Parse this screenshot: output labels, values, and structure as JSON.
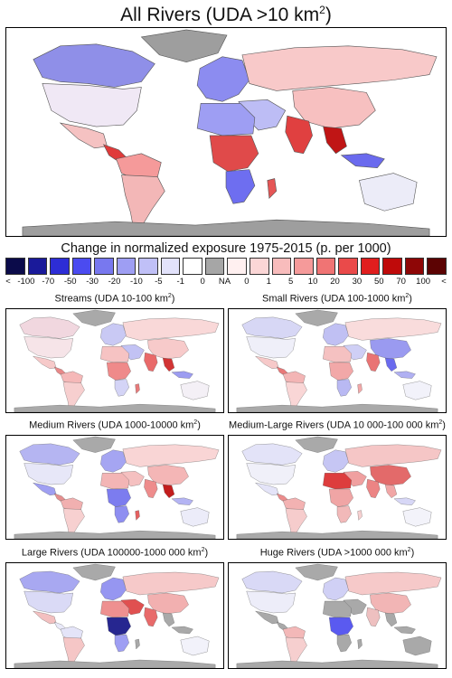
{
  "main_title": "All Rivers (UDA >10 km",
  "main_title_sup": "2",
  "main_title_suffix": ")",
  "legend": {
    "title": "Change in normalized exposure 1975-2015 (p. per 1000)",
    "labels": [
      "<",
      "-100",
      "-70",
      "-50",
      "-30",
      "-20",
      "-10",
      "-5",
      "-1",
      "0",
      "NA",
      "0",
      "1",
      "5",
      "10",
      "20",
      "30",
      "50",
      "70",
      "100",
      "<"
    ],
    "colors": [
      "#0b0b4a",
      "#1a1a9a",
      "#2d2dd6",
      "#4b4bf0",
      "#7878ef",
      "#9e9ef3",
      "#c0c0f7",
      "#e2e2fb",
      "#ffffff",
      "#a6a6a6",
      "#fff0f0",
      "#fbd6d6",
      "#f8bcbc",
      "#f59a9a",
      "#f07474",
      "#ea4a4a",
      "#e01e1e",
      "#bf0a0a",
      "#8e0606",
      "#5c0303"
    ]
  },
  "panels": [
    {
      "title": "Streams (UDA 10-100 km",
      "sup": "2",
      "suffix": ")"
    },
    {
      "title": "Small Rivers (UDA 100-1000 km",
      "sup": "2",
      "suffix": ")"
    },
    {
      "title": "Medium Rivers (UDA 1000-10000 km",
      "sup": "2",
      "suffix": ")"
    },
    {
      "title": "Medium-Large Rivers (UDA 10 000-100 000 km",
      "sup": "2",
      "suffix": ")"
    },
    {
      "title": "Large Rivers (UDA 100000-1000 000 km",
      "sup": "2",
      "suffix": ")"
    },
    {
      "title": "Huge Rivers (UDA >1000 000 km",
      "sup": "2",
      "suffix": ")"
    }
  ],
  "map_colors": {
    "main": {
      "na": "#9e9e9e",
      "north_america": "#8f8fe8",
      "canada": "#8f8fe8",
      "usa": "#f0e8f5",
      "mexico": "#f5c2c2",
      "central_america": "#e03a3a",
      "south_america": "#f3b7b7",
      "south_america_north": "#f59a9a",
      "europe": "#8c8cf0",
      "africa_north": "#9e9ef3",
      "africa_central": "#e04a4a",
      "africa_south": "#6e6ef0",
      "russia": "#f8c9c9",
      "middle_east": "#bdbdf5",
      "india": "#e04040",
      "china": "#f7c0c0",
      "se_asia": "#c01515",
      "indonesia": "#6a6aee",
      "australia": "#ececf8",
      "madagascar": "#e55555"
    },
    "streams": {
      "na": "#a9a9a9",
      "north_america": "#f2d4dc",
      "canada": "#f1d7df",
      "usa": "#f6e4e8",
      "mexico": "#f6c9c9",
      "central_america": "#e88888",
      "south_america": "#f7cfcf",
      "south_america_north": "#f5b8b8",
      "europe": "#c9c9f4",
      "africa_north": "#f6c3c3",
      "africa_central": "#ef8a8a",
      "africa_south": "#d4d4f6",
      "russia": "#f9d8d8",
      "middle_east": "#c2c2f4",
      "india": "#e96a6a",
      "china": "#f7caca",
      "se_asia": "#d23434",
      "indonesia": "#9c9cf1",
      "australia": "#f4f0f6",
      "madagascar": "#e87a7a"
    },
    "small": {
      "na": "#a9a9a9",
      "north_america": "#dcdcf4",
      "canada": "#d7d7f5",
      "usa": "#efeff9",
      "mexico": "#f6c9c9",
      "central_america": "#e87878",
      "south_america": "#f9d6d6",
      "south_america_north": "#f3b5b5",
      "europe": "#c0c0f3",
      "africa_north": "#f5c1c1",
      "africa_central": "#f2a8a8",
      "africa_south": "#b9b9f3",
      "russia": "#f9dcdc",
      "middle_east": "#cfcff5",
      "india": "#e97474",
      "china": "#9a9af0",
      "se_asia": "#6a6aee",
      "indonesia": "#b0b0f2",
      "australia": "#f2f2fa",
      "madagascar": "#f3a8a8"
    },
    "medium": {
      "na": "#a9a9a9",
      "north_america": "#b9b9f3",
      "canada": "#b5b5f2",
      "usa": "#e7e7f8",
      "mexico": "#9f9ff2",
      "central_america": "#e58f8f",
      "south_america": "#f7d0d0",
      "south_america_north": "#f1b0b0",
      "europe": "#a5a5f2",
      "africa_north": "#f3b5b5",
      "africa_central": "#7c7cef",
      "africa_south": "#8e8ef1",
      "russia": "#f9d5d5",
      "middle_east": "#f5c0c0",
      "india": "#ee8c8c",
      "china": "#f4b6b6",
      "se_asia": "#c31d1d",
      "indonesia": "#b4b4f3",
      "australia": "#ececf9",
      "madagascar": "#e66060"
    },
    "medium_large": {
      "na": "#a9a9a9",
      "north_america": "#ececf9",
      "canada": "#e3e3f8",
      "usa": "#f0f0f9",
      "mexico": "#e4e4f8",
      "central_america": "#ec8c8c",
      "south_america": "#f6cccc",
      "south_america_north": "#f3b2b2",
      "europe": "#c6c6f4",
      "africa_north": "#dd3d3d",
      "africa_central": "#f0a5a5",
      "africa_south": "#f2b9b9",
      "russia": "#f5c6c6",
      "middle_east": "#f0a0a0",
      "india": "#ec8484",
      "china": "#e36a6a",
      "se_asia": "#f1a6a6",
      "indonesia": "#d7d7f6",
      "australia": "#f3f3fa",
      "madagascar": "#f7d0d0"
    },
    "large": {
      "na": "#a9a9a9",
      "north_america": "#b4b4f2",
      "canada": "#a8a8f1",
      "usa": "#dadaf6",
      "mexico": "#f3c0c0",
      "central_america": "#e9e9f9",
      "south_america": "#f5c6c6",
      "south_america_north": "#e4e4f8",
      "europe": "#9696f1",
      "africa_north": "#ee9090",
      "africa_central": "#262690",
      "africa_south": "#9e9ef3",
      "russia": "#f6c9c9",
      "middle_east": "#e05050",
      "india": "#e86a6a",
      "china": "#f2b0b0",
      "se_asia": "#a9a9a9",
      "indonesia": "#a9a9a9",
      "australia": "#f2f2fa",
      "madagascar": "#a9a9a9"
    },
    "huge": {
      "na": "#a9a9a9",
      "north_america": "#e4e4f8",
      "canada": "#d9d9f6",
      "usa": "#ededf9",
      "mexico": "#a9a9a9",
      "central_america": "#a9a9a9",
      "south_america": "#f6cfcf",
      "south_america_north": "#f3b8b8",
      "europe": "#d0d0f5",
      "africa_north": "#a9a9a9",
      "africa_central": "#5a5af0",
      "africa_south": "#a9a9a9",
      "russia": "#f6c9c9",
      "middle_east": "#a9a9a9",
      "india": "#eec0c0",
      "china": "#f2b5b5",
      "se_asia": "#a9a9a9",
      "indonesia": "#a9a9a9",
      "australia": "#a9a9a9",
      "madagascar": "#a9a9a9"
    }
  }
}
